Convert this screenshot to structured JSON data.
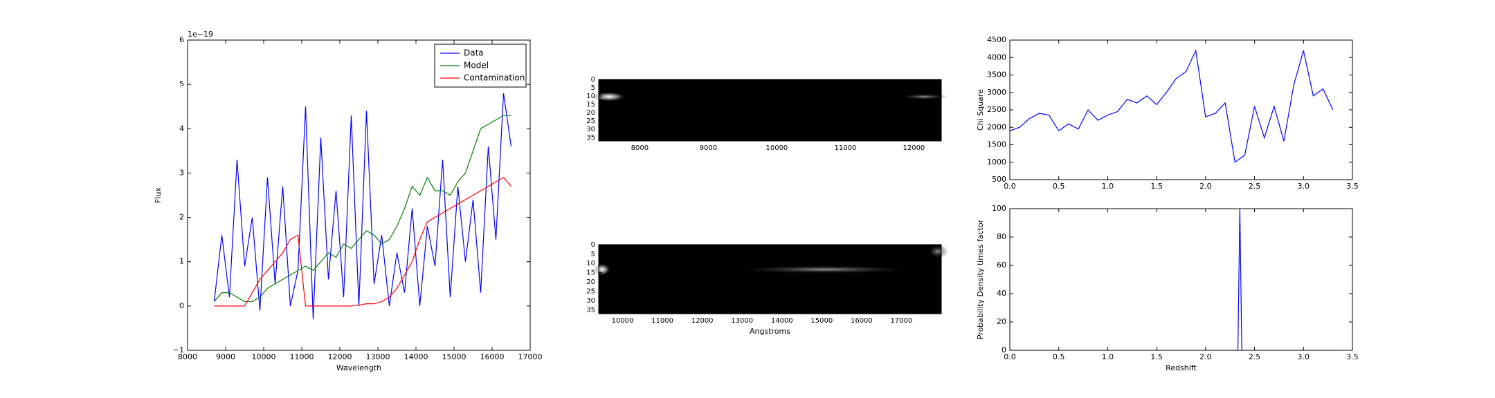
{
  "chart_data": [
    {
      "type": "line",
      "annotation": "1e−19",
      "xlabel": "Wavelength",
      "ylabel": "Flux",
      "xlim": [
        8000,
        17000
      ],
      "xticks": [
        8000,
        9000,
        10000,
        11000,
        12000,
        13000,
        14000,
        15000,
        16000,
        17000
      ],
      "ylim": [
        -1,
        6
      ],
      "yticks": [
        {
          "value": -1,
          "label": "−1"
        },
        0,
        1,
        2,
        3,
        4,
        5,
        6
      ],
      "legend": "upper right",
      "x": [
        8700,
        8900,
        9100,
        9300,
        9500,
        9700,
        9900,
        10100,
        10300,
        10500,
        10700,
        10900,
        11100,
        11300,
        11500,
        11700,
        11900,
        12100,
        12300,
        12500,
        12700,
        12900,
        13100,
        13300,
        13500,
        13700,
        13900,
        14100,
        14300,
        14500,
        14700,
        14900,
        15100,
        15300,
        15500,
        15700,
        15900,
        16100,
        16300,
        16500
      ],
      "series": [
        {
          "name": "Data",
          "color": "#0000ff",
          "values": [
            0.1,
            1.6,
            0.2,
            3.3,
            0.9,
            2.0,
            -0.1,
            2.9,
            0.5,
            2.7,
            0.0,
            0.8,
            4.5,
            -0.3,
            3.8,
            0.6,
            2.6,
            0.2,
            4.3,
            0.0,
            4.4,
            0.5,
            1.6,
            0.0,
            1.2,
            0.3,
            2.2,
            0.0,
            1.8,
            0.9,
            3.3,
            0.2,
            2.7,
            1.0,
            2.4,
            0.3,
            3.6,
            1.5,
            4.8,
            3.6
          ]
        },
        {
          "name": "Model",
          "color": "#008000",
          "values": [
            0.1,
            0.3,
            0.3,
            0.2,
            0.1,
            0.1,
            0.2,
            0.4,
            0.5,
            0.6,
            0.7,
            0.8,
            0.9,
            0.8,
            1.0,
            1.2,
            1.1,
            1.4,
            1.3,
            1.5,
            1.7,
            1.6,
            1.4,
            1.5,
            1.8,
            2.2,
            2.7,
            2.5,
            2.9,
            2.6,
            2.6,
            2.5,
            2.8,
            3.0,
            3.5,
            4.0,
            4.1,
            4.2,
            4.3,
            4.3
          ]
        },
        {
          "name": "Contamination",
          "color": "#ff0000",
          "values": [
            0,
            0,
            0,
            0,
            0,
            0.3,
            0.6,
            0.8,
            1.0,
            1.2,
            1.5,
            1.6,
            0,
            0,
            0,
            0,
            0,
            0,
            0,
            0.02,
            0.05,
            0.05,
            0.1,
            0.2,
            0.4,
            0.7,
            1.0,
            1.5,
            1.9,
            2.0,
            2.1,
            2.2,
            2.3,
            2.4,
            2.5,
            2.6,
            2.7,
            2.8,
            2.9,
            2.7
          ]
        }
      ]
    },
    {
      "type": "image",
      "xlim": [
        7400,
        12400
      ],
      "xticks": [
        8000,
        9000,
        10000,
        11000,
        12000
      ],
      "ylim": [
        37,
        0
      ],
      "yticks": [
        0,
        5,
        10,
        15,
        20,
        25,
        30,
        35
      ]
    },
    {
      "type": "image",
      "xlabel": "Angstroms",
      "xlim": [
        9400,
        18000
      ],
      "xticks": [
        10000,
        11000,
        12000,
        13000,
        14000,
        15000,
        16000,
        17000
      ],
      "ylim": [
        37,
        0
      ],
      "yticks": [
        0,
        5,
        10,
        15,
        20,
        25,
        30,
        35
      ]
    },
    {
      "type": "line",
      "ylabel": "Chi Square",
      "color": "#0000ff",
      "xlim": [
        0,
        3.5
      ],
      "xticks": [
        {
          "value": 0,
          "label": "0.0"
        },
        0.5,
        {
          "value": 1,
          "label": "1.0"
        },
        1.5,
        {
          "value": 2,
          "label": "2.0"
        },
        2.5,
        {
          "value": 3,
          "label": "3.0"
        },
        3.5
      ],
      "ylim": [
        500,
        4500
      ],
      "yticks": [
        500,
        1000,
        1500,
        2000,
        2500,
        3000,
        3500,
        4000,
        4500
      ],
      "x": [
        0,
        0.1,
        0.2,
        0.3,
        0.4,
        0.5,
        0.6,
        0.7,
        0.8,
        0.9,
        1.0,
        1.1,
        1.2,
        1.3,
        1.4,
        1.5,
        1.6,
        1.7,
        1.8,
        1.9,
        2.0,
        2.1,
        2.2,
        2.3,
        2.4,
        2.5,
        2.6,
        2.7,
        2.8,
        2.9,
        3.0,
        3.1,
        3.2,
        3.3
      ],
      "values": [
        1900,
        2000,
        2250,
        2400,
        2350,
        1900,
        2100,
        1950,
        2500,
        2200,
        2350,
        2450,
        2800,
        2700,
        2900,
        2650,
        3000,
        3400,
        3600,
        4200,
        2300,
        2400,
        2700,
        1000,
        1200,
        2600,
        1700,
        2600,
        1600,
        3200,
        4200,
        2900,
        3100,
        2500
      ]
    },
    {
      "type": "line",
      "xlabel": "Redshift",
      "ylabel": "Probability Density times factor",
      "color": "#0000ff",
      "xlim": [
        0,
        3.5
      ],
      "xticks": [
        {
          "value": 0,
          "label": "0.0"
        },
        0.5,
        {
          "value": 1,
          "label": "1.0"
        },
        1.5,
        {
          "value": 2,
          "label": "2.0"
        },
        2.5,
        {
          "value": 3,
          "label": "3.0"
        },
        3.5
      ],
      "ylim": [
        0,
        100
      ],
      "yticks": [
        0,
        20,
        40,
        60,
        80,
        100
      ],
      "x": [
        0,
        2.33,
        2.35,
        2.37,
        3.3
      ],
      "values": [
        0,
        0,
        100,
        0,
        0
      ]
    }
  ]
}
